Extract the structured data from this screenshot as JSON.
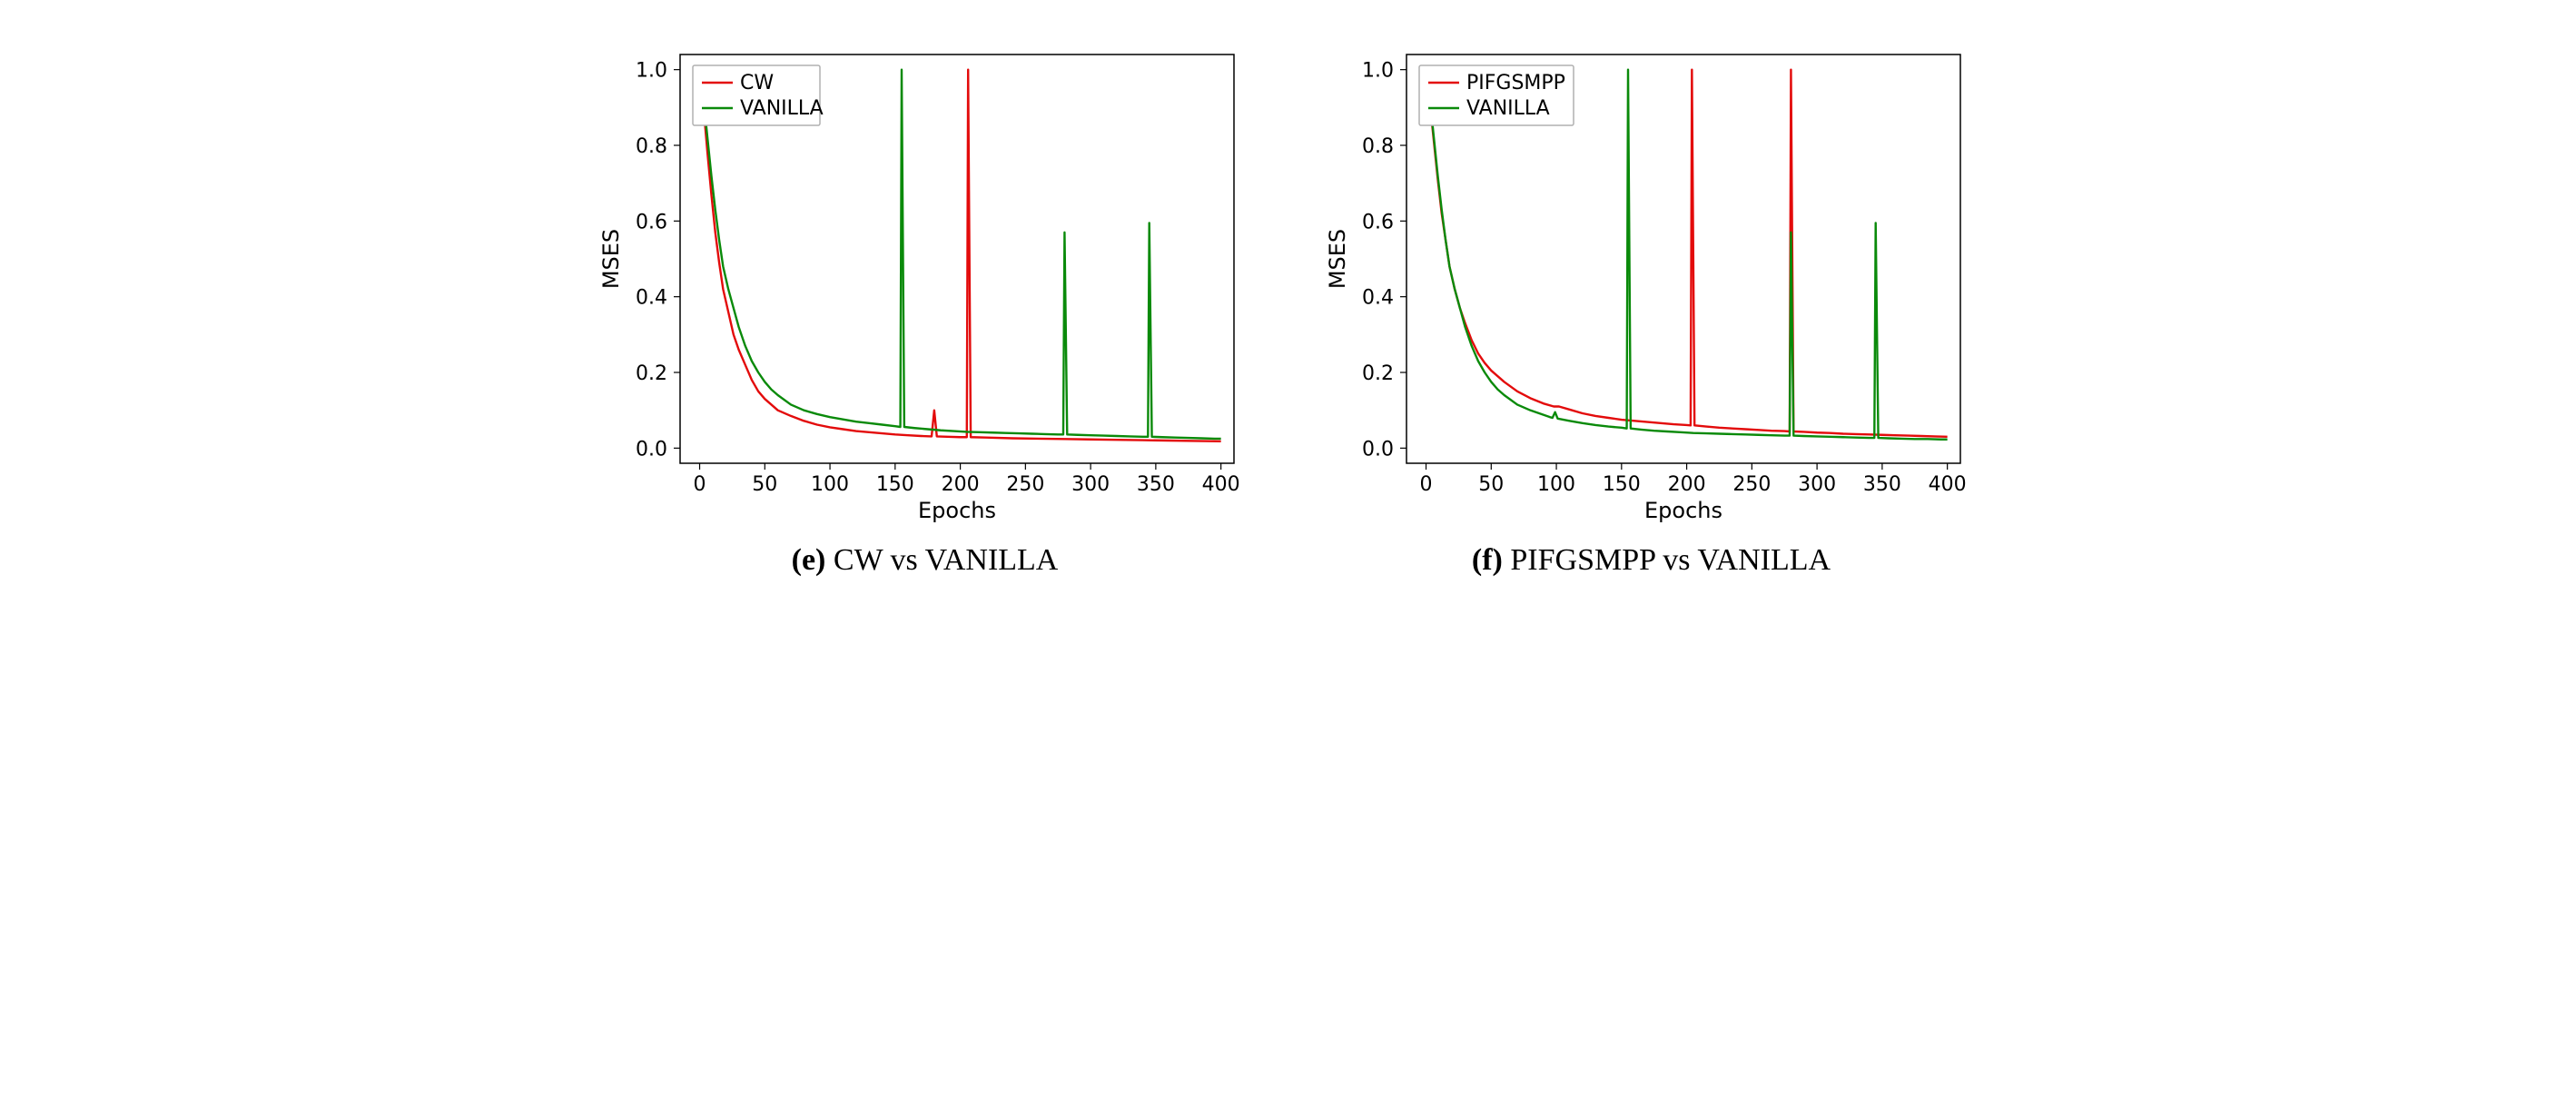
{
  "figure": {
    "background_color": "#ffffff",
    "line_width": 2.4,
    "axis_color": "#000000",
    "tick_fontsize": 22,
    "label_fontsize": 24,
    "legend_fontsize": 22,
    "legend_border": "#b0b0b0",
    "legend_bg": "#ffffff",
    "xlabel": "Epochs",
    "ylabel": "MSES",
    "xlim": [
      -15,
      410
    ],
    "ylim": [
      -0.04,
      1.04
    ],
    "xticks": [
      0,
      50,
      100,
      150,
      200,
      250,
      300,
      350,
      400
    ],
    "yticks": [
      0.0,
      0.2,
      0.4,
      0.6,
      0.8,
      1.0
    ],
    "colors": {
      "series1": "#e30b0b",
      "vanilla": "#0a8a0a"
    }
  },
  "panels": [
    {
      "id": "e",
      "caption_tag": "(e)",
      "caption_text": "CW vs VANILLA",
      "legend": [
        "CW",
        "VANILLA"
      ],
      "series": [
        {
          "name": "CW",
          "colorkey": "series1",
          "break_thresh": 0.3,
          "data": [
            [
              0,
              1.0
            ],
            [
              3,
              0.9
            ],
            [
              6,
              0.78
            ],
            [
              9,
              0.67
            ],
            [
              12,
              0.57
            ],
            [
              15,
              0.49
            ],
            [
              18,
              0.42
            ],
            [
              22,
              0.36
            ],
            [
              26,
              0.3
            ],
            [
              30,
              0.26
            ],
            [
              35,
              0.22
            ],
            [
              40,
              0.18
            ],
            [
              45,
              0.15
            ],
            [
              50,
              0.13
            ],
            [
              55,
              0.115
            ],
            [
              60,
              0.1
            ],
            [
              70,
              0.085
            ],
            [
              80,
              0.072
            ],
            [
              90,
              0.062
            ],
            [
              100,
              0.055
            ],
            [
              110,
              0.05
            ],
            [
              120,
              0.045
            ],
            [
              130,
              0.042
            ],
            [
              140,
              0.039
            ],
            [
              150,
              0.036
            ],
            [
              160,
              0.034
            ],
            [
              170,
              0.032
            ],
            [
              178,
              0.031
            ],
            [
              180,
              0.1
            ],
            [
              182,
              0.031
            ],
            [
              190,
              0.03
            ],
            [
              200,
              0.029
            ],
            [
              205,
              0.029
            ],
            [
              206,
              1.0
            ],
            [
              208,
              0.029
            ],
            [
              220,
              0.028
            ],
            [
              240,
              0.026
            ],
            [
              260,
              0.025
            ],
            [
              280,
              0.024
            ],
            [
              300,
              0.023
            ],
            [
              320,
              0.022
            ],
            [
              340,
              0.021
            ],
            [
              360,
              0.02
            ],
            [
              380,
              0.019
            ],
            [
              400,
              0.018
            ]
          ]
        },
        {
          "name": "VANILLA",
          "colorkey": "vanilla",
          "break_thresh": 0.3,
          "data": [
            [
              0,
              1.0
            ],
            [
              3,
              0.92
            ],
            [
              6,
              0.82
            ],
            [
              9,
              0.72
            ],
            [
              12,
              0.63
            ],
            [
              15,
              0.55
            ],
            [
              18,
              0.48
            ],
            [
              22,
              0.42
            ],
            [
              26,
              0.37
            ],
            [
              30,
              0.32
            ],
            [
              35,
              0.27
            ],
            [
              40,
              0.23
            ],
            [
              45,
              0.2
            ],
            [
              50,
              0.175
            ],
            [
              55,
              0.155
            ],
            [
              60,
              0.14
            ],
            [
              70,
              0.115
            ],
            [
              80,
              0.1
            ],
            [
              90,
              0.09
            ],
            [
              100,
              0.082
            ],
            [
              110,
              0.076
            ],
            [
              120,
              0.07
            ],
            [
              130,
              0.066
            ],
            [
              140,
              0.062
            ],
            [
              150,
              0.058
            ],
            [
              154,
              0.056
            ],
            [
              155,
              1.0
            ],
            [
              157,
              0.056
            ],
            [
              165,
              0.053
            ],
            [
              175,
              0.05
            ],
            [
              185,
              0.047
            ],
            [
              195,
              0.045
            ],
            [
              205,
              0.043
            ],
            [
              215,
              0.042
            ],
            [
              225,
              0.041
            ],
            [
              235,
              0.04
            ],
            [
              245,
              0.039
            ],
            [
              255,
              0.038
            ],
            [
              265,
              0.037
            ],
            [
              275,
              0.036
            ],
            [
              279,
              0.036
            ],
            [
              280,
              0.57
            ],
            [
              282,
              0.036
            ],
            [
              290,
              0.035
            ],
            [
              300,
              0.034
            ],
            [
              310,
              0.033
            ],
            [
              320,
              0.032
            ],
            [
              330,
              0.031
            ],
            [
              340,
              0.03
            ],
            [
              344,
              0.03
            ],
            [
              345,
              0.595
            ],
            [
              347,
              0.03
            ],
            [
              355,
              0.029
            ],
            [
              365,
              0.028
            ],
            [
              375,
              0.027
            ],
            [
              385,
              0.026
            ],
            [
              395,
              0.025
            ],
            [
              400,
              0.025
            ]
          ]
        }
      ]
    },
    {
      "id": "f",
      "caption_tag": "(f)",
      "caption_text": "PIFGSMPP vs VANILLA",
      "legend": [
        "PIFGSMPP",
        "VANILLA"
      ],
      "series": [
        {
          "name": "PIFGSMPP",
          "colorkey": "series1",
          "break_thresh": 0.3,
          "data": [
            [
              0,
              1.0
            ],
            [
              3,
              0.91
            ],
            [
              6,
              0.81
            ],
            [
              9,
              0.71
            ],
            [
              12,
              0.62
            ],
            [
              15,
              0.55
            ],
            [
              18,
              0.48
            ],
            [
              22,
              0.42
            ],
            [
              26,
              0.37
            ],
            [
              30,
              0.33
            ],
            [
              35,
              0.285
            ],
            [
              40,
              0.25
            ],
            [
              45,
              0.225
            ],
            [
              50,
              0.205
            ],
            [
              55,
              0.19
            ],
            [
              60,
              0.175
            ],
            [
              70,
              0.15
            ],
            [
              80,
              0.132
            ],
            [
              90,
              0.118
            ],
            [
              98,
              0.11
            ],
            [
              100,
              0.11
            ],
            [
              102,
              0.11
            ],
            [
              110,
              0.102
            ],
            [
              120,
              0.092
            ],
            [
              130,
              0.085
            ],
            [
              140,
              0.08
            ],
            [
              150,
              0.075
            ],
            [
              160,
              0.072
            ],
            [
              170,
              0.069
            ],
            [
              180,
              0.066
            ],
            [
              190,
              0.063
            ],
            [
              200,
              0.061
            ],
            [
              203,
              0.06
            ],
            [
              204,
              1.0
            ],
            [
              206,
              0.06
            ],
            [
              215,
              0.057
            ],
            [
              225,
              0.054
            ],
            [
              235,
              0.052
            ],
            [
              245,
              0.05
            ],
            [
              255,
              0.048
            ],
            [
              265,
              0.046
            ],
            [
              275,
              0.045
            ],
            [
              279,
              0.044
            ],
            [
              280,
              1.0
            ],
            [
              282,
              0.044
            ],
            [
              290,
              0.043
            ],
            [
              300,
              0.041
            ],
            [
              310,
              0.04
            ],
            [
              320,
              0.038
            ],
            [
              330,
              0.037
            ],
            [
              340,
              0.036
            ],
            [
              350,
              0.035
            ],
            [
              360,
              0.034
            ],
            [
              370,
              0.033
            ],
            [
              380,
              0.032
            ],
            [
              390,
              0.031
            ],
            [
              400,
              0.03
            ]
          ]
        },
        {
          "name": "VANILLA",
          "colorkey": "vanilla",
          "break_thresh": 0.3,
          "data": [
            [
              0,
              1.0
            ],
            [
              3,
              0.92
            ],
            [
              6,
              0.82
            ],
            [
              9,
              0.72
            ],
            [
              12,
              0.63
            ],
            [
              15,
              0.55
            ],
            [
              18,
              0.48
            ],
            [
              22,
              0.42
            ],
            [
              26,
              0.37
            ],
            [
              30,
              0.32
            ],
            [
              35,
              0.27
            ],
            [
              40,
              0.23
            ],
            [
              45,
              0.2
            ],
            [
              50,
              0.175
            ],
            [
              55,
              0.155
            ],
            [
              60,
              0.14
            ],
            [
              70,
              0.115
            ],
            [
              80,
              0.1
            ],
            [
              90,
              0.088
            ],
            [
              95,
              0.082
            ],
            [
              97,
              0.08
            ],
            [
              99,
              0.095
            ],
            [
              101,
              0.078
            ],
            [
              110,
              0.072
            ],
            [
              120,
              0.066
            ],
            [
              130,
              0.061
            ],
            [
              140,
              0.057
            ],
            [
              150,
              0.054
            ],
            [
              154,
              0.052
            ],
            [
              155,
              1.0
            ],
            [
              157,
              0.052
            ],
            [
              165,
              0.049
            ],
            [
              175,
              0.046
            ],
            [
              185,
              0.044
            ],
            [
              195,
              0.042
            ],
            [
              205,
              0.04
            ],
            [
              215,
              0.039
            ],
            [
              225,
              0.038
            ],
            [
              235,
              0.037
            ],
            [
              245,
              0.036
            ],
            [
              255,
              0.035
            ],
            [
              265,
              0.034
            ],
            [
              275,
              0.033
            ],
            [
              279,
              0.033
            ],
            [
              280,
              0.57
            ],
            [
              282,
              0.033
            ],
            [
              290,
              0.032
            ],
            [
              300,
              0.031
            ],
            [
              310,
              0.03
            ],
            [
              320,
              0.029
            ],
            [
              330,
              0.028
            ],
            [
              340,
              0.027
            ],
            [
              344,
              0.027
            ],
            [
              345,
              0.595
            ],
            [
              347,
              0.027
            ],
            [
              355,
              0.026
            ],
            [
              365,
              0.025
            ],
            [
              375,
              0.024
            ],
            [
              385,
              0.024
            ],
            [
              395,
              0.023
            ],
            [
              400,
              0.023
            ]
          ]
        }
      ]
    }
  ]
}
